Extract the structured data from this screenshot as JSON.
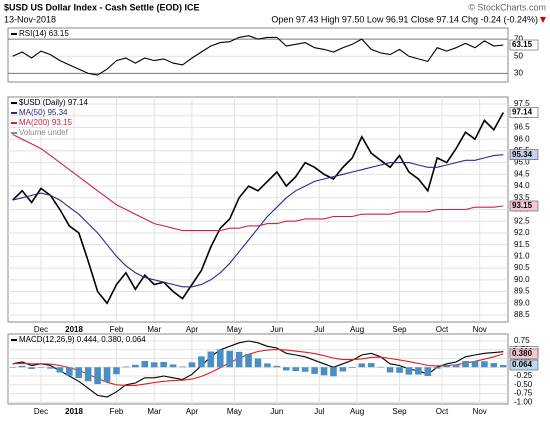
{
  "header": {
    "title": "$USD US Dollar Index - Cash Settle (EOD) ICE",
    "date": "13-Nov-2018",
    "quote": "Open 97.43 High 97.50 Low 96.91 Close 97.14 Chg -0.24 (-0.24%)",
    "source": "© StockCharts.com"
  },
  "chart_data": [
    {
      "type": "line",
      "legend": [
        "RSI(14) 63.15"
      ],
      "tags": [
        "63.15"
      ],
      "ylim": [
        20,
        83
      ],
      "yticks": [
        30,
        50,
        70
      ],
      "grid": true,
      "series": [
        {
          "color": "#000000",
          "values": [
            50,
            55,
            48,
            56,
            52,
            45,
            40,
            35,
            30,
            28,
            35,
            45,
            48,
            42,
            48,
            45,
            47,
            42,
            40,
            48,
            55,
            62,
            66,
            67,
            72,
            74,
            70,
            72,
            72,
            62,
            64,
            66,
            60,
            58,
            55,
            60,
            64,
            70,
            58,
            54,
            52,
            58,
            50,
            47,
            44,
            60,
            56,
            60,
            65,
            60,
            68,
            62,
            63.15
          ]
        }
      ]
    },
    {
      "type": "line",
      "legend": [
        "$USD (Daily) 97.14",
        "MA(50) 95.34",
        "MA(200) 93.15",
        "Volume undef"
      ],
      "tags": [
        "97.14",
        "95.34",
        "93.15"
      ],
      "ylim": [
        88.2,
        97.8
      ],
      "grid": true,
      "yticks": [
        88.5,
        {
          "value": 89,
          "label": "89.0"
        },
        89.5,
        {
          "value": 90,
          "label": "90.0"
        },
        90.5,
        {
          "value": 91,
          "label": "91.0"
        },
        91.5,
        {
          "value": 92,
          "label": "92.0"
        },
        92.5,
        {
          "value": 93,
          "label": "93.0"
        },
        93.5,
        {
          "value": 94,
          "label": "94.0"
        },
        94.5,
        {
          "value": 95,
          "label": "95.0"
        },
        95.5,
        {
          "value": 96,
          "label": "96.0"
        },
        96.5,
        {
          "value": 97,
          "label": "97.0"
        },
        97.5
      ],
      "xticks": [
        {
          "value": 3,
          "label": "Dec"
        },
        {
          "value": 6.5,
          "label": "2018"
        },
        {
          "value": 11,
          "label": "Feb"
        },
        {
          "value": 15,
          "label": "Mar"
        },
        {
          "value": 19,
          "label": "Apr"
        },
        {
          "value": 23.5,
          "label": "May"
        },
        {
          "value": 28,
          "label": "Jun"
        },
        {
          "value": 32.5,
          "label": "Jul"
        },
        {
          "value": 36.5,
          "label": "Aug"
        },
        {
          "value": 41,
          "label": "Sep"
        },
        {
          "value": 45.5,
          "label": "Oct"
        },
        {
          "value": 49.5,
          "label": "Nov"
        }
      ],
      "series": [
        {
          "color": "#000000",
          "values": [
            93.4,
            93.8,
            93.3,
            93.9,
            93.6,
            93.0,
            92.3,
            92.0,
            90.8,
            89.5,
            89.0,
            89.8,
            90.3,
            89.6,
            90.2,
            89.8,
            89.9,
            89.5,
            89.2,
            89.8,
            90.4,
            91.4,
            92.2,
            92.6,
            93.5,
            94.0,
            93.8,
            94.2,
            94.6,
            94.0,
            94.4,
            95.0,
            94.8,
            94.5,
            94.3,
            94.8,
            95.2,
            96.1,
            95.4,
            95.1,
            94.8,
            95.3,
            94.6,
            94.3,
            93.8,
            95.2,
            95.0,
            95.6,
            96.3,
            96.0,
            96.8,
            96.4,
            97.14
          ]
        },
        {
          "color": "#2b2b8c",
          "values": [
            93.4,
            93.5,
            93.6,
            93.7,
            93.6,
            93.4,
            93.1,
            92.8,
            92.4,
            92.0,
            91.5,
            91.0,
            90.6,
            90.3,
            90.1,
            90.0,
            89.9,
            89.8,
            89.7,
            89.7,
            89.8,
            90.0,
            90.3,
            90.7,
            91.2,
            91.7,
            92.2,
            92.7,
            93.1,
            93.5,
            93.8,
            94.0,
            94.2,
            94.3,
            94.4,
            94.5,
            94.6,
            94.7,
            94.8,
            94.9,
            95.0,
            95.0,
            95.0,
            94.9,
            94.8,
            94.8,
            94.9,
            95.0,
            95.1,
            95.1,
            95.2,
            95.3,
            95.34
          ]
        },
        {
          "color": "#d0204a",
          "values": [
            96.2,
            96.0,
            95.8,
            95.6,
            95.3,
            95.0,
            94.7,
            94.4,
            94.1,
            93.8,
            93.5,
            93.2,
            93.0,
            92.8,
            92.6,
            92.4,
            92.3,
            92.2,
            92.1,
            92.1,
            92.1,
            92.1,
            92.1,
            92.2,
            92.2,
            92.3,
            92.3,
            92.4,
            92.4,
            92.5,
            92.5,
            92.6,
            92.6,
            92.6,
            92.7,
            92.7,
            92.7,
            92.8,
            92.8,
            92.8,
            92.8,
            92.9,
            92.9,
            92.9,
            92.9,
            93.0,
            93.0,
            93.0,
            93.0,
            93.1,
            93.1,
            93.1,
            93.15
          ]
        }
      ]
    },
    {
      "type": "line",
      "legend": [
        "MACD(12,26,9) 0.444, 0.380, 0.064"
      ],
      "tags": [
        "0.444",
        "0.380",
        "0.064"
      ],
      "ylim": [
        -1.05,
        0.95
      ],
      "grid": true,
      "yticks": [
        0.75,
        {
          "value": 0.5,
          "label": "0.50"
        },
        0.25,
        {
          "value": 0,
          "label": "0.00"
        },
        -0.25,
        {
          "value": -0.5,
          "label": "-0.50"
        },
        -0.75,
        {
          "value": -1,
          "label": "-1.00"
        }
      ],
      "xticks": [
        {
          "value": 3,
          "label": "Dec"
        },
        {
          "value": 6.5,
          "label": "2018"
        },
        {
          "value": 11,
          "label": "Feb"
        },
        {
          "value": 15,
          "label": "Mar"
        },
        {
          "value": 19,
          "label": "Apr"
        },
        {
          "value": 23.5,
          "label": "May"
        },
        {
          "value": 28,
          "label": "Jun"
        },
        {
          "value": 32.5,
          "label": "Jul"
        },
        {
          "value": 36.5,
          "label": "Aug"
        },
        {
          "value": 41,
          "label": "Sep"
        },
        {
          "value": 45.5,
          "label": "Oct"
        },
        {
          "value": 49.5,
          "label": "Nov"
        }
      ],
      "series": [
        {
          "color": "#000000",
          "values": [
            0.1,
            0.15,
            0.05,
            0.1,
            0.05,
            -0.1,
            -0.25,
            -0.4,
            -0.6,
            -0.8,
            -0.85,
            -0.7,
            -0.5,
            -0.45,
            -0.3,
            -0.3,
            -0.25,
            -0.3,
            -0.35,
            -0.2,
            0.05,
            0.3,
            0.5,
            0.6,
            0.7,
            0.75,
            0.7,
            0.6,
            0.55,
            0.4,
            0.35,
            0.3,
            0.2,
            0.1,
            0.0,
            0.1,
            0.2,
            0.35,
            0.4,
            0.3,
            0.1,
            0.05,
            -0.05,
            -0.1,
            -0.2,
            0.0,
            0.1,
            0.15,
            0.3,
            0.35,
            0.4,
            0.42,
            0.444
          ]
        },
        {
          "color": "#e02020",
          "values": [
            0.1,
            0.11,
            0.1,
            0.1,
            0.09,
            0.05,
            -0.01,
            -0.09,
            -0.2,
            -0.32,
            -0.43,
            -0.5,
            -0.52,
            -0.52,
            -0.48,
            -0.44,
            -0.4,
            -0.38,
            -0.37,
            -0.34,
            -0.26,
            -0.15,
            -0.01,
            0.13,
            0.26,
            0.37,
            0.45,
            0.49,
            0.51,
            0.49,
            0.46,
            0.43,
            0.39,
            0.33,
            0.26,
            0.22,
            0.22,
            0.24,
            0.28,
            0.29,
            0.25,
            0.21,
            0.16,
            0.11,
            0.05,
            0.04,
            0.05,
            0.07,
            0.12,
            0.17,
            0.23,
            0.3,
            0.38
          ]
        },
        {
          "color": "#4a8fc4",
          "type": "bar",
          "values": [
            0.0,
            0.04,
            -0.05,
            0.0,
            -0.04,
            -0.15,
            -0.24,
            -0.31,
            -0.4,
            -0.48,
            -0.42,
            -0.2,
            0.02,
            0.07,
            0.18,
            0.14,
            0.15,
            0.08,
            0.02,
            0.14,
            0.31,
            0.45,
            0.51,
            0.47,
            0.44,
            0.38,
            0.25,
            0.11,
            0.04,
            -0.09,
            -0.11,
            -0.13,
            -0.19,
            -0.23,
            -0.26,
            -0.12,
            -0.02,
            0.11,
            0.12,
            0.01,
            -0.15,
            -0.16,
            -0.21,
            -0.21,
            -0.25,
            -0.04,
            0.05,
            0.08,
            0.18,
            0.18,
            0.17,
            0.12,
            0.064
          ]
        }
      ]
    }
  ]
}
